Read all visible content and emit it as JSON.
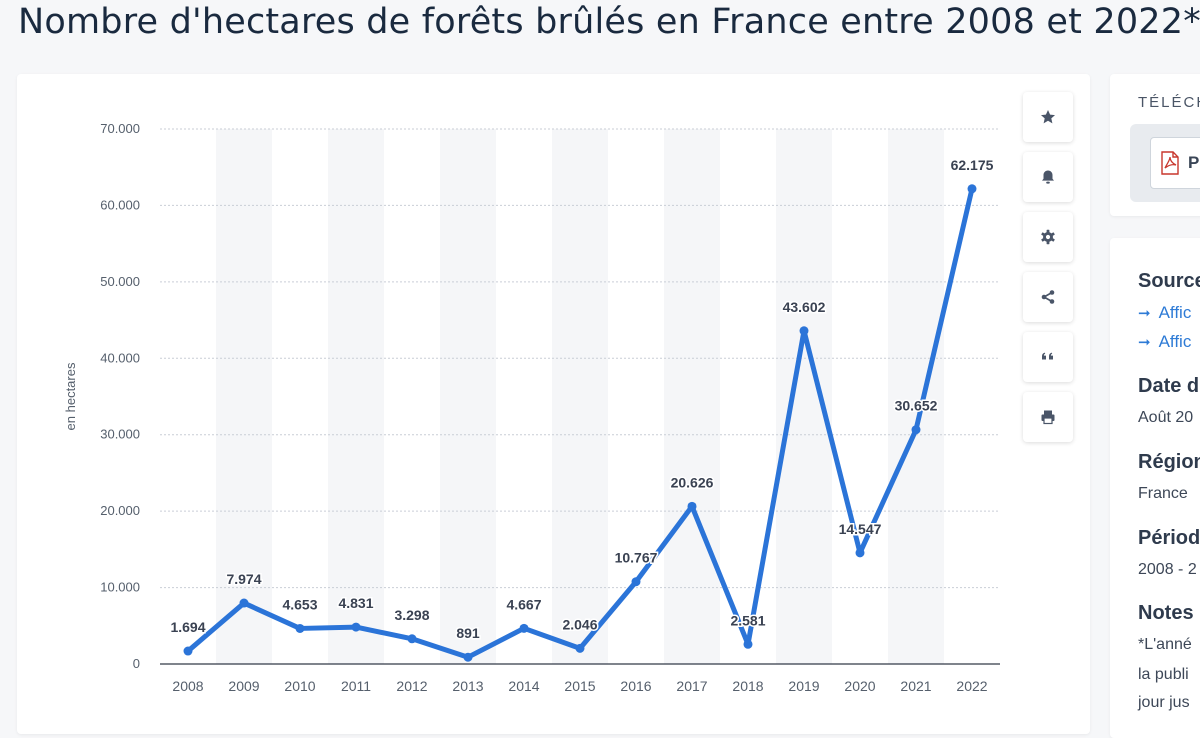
{
  "page": {
    "title": "Nombre d'hectares de forêts brûlés en France entre 2008 et 2022*"
  },
  "chart_data": {
    "type": "line",
    "title": "Nombre d'hectares de forêts brûlés en France entre 2008 et 2022*",
    "xlabel": "",
    "ylabel": "en hectares",
    "categories": [
      "2008",
      "2009",
      "2010",
      "2011",
      "2012",
      "2013",
      "2014",
      "2015",
      "2016",
      "2017",
      "2018",
      "2019",
      "2020",
      "2021",
      "2022"
    ],
    "values": [
      1694,
      7974,
      4653,
      4831,
      3298,
      891,
      4667,
      2046,
      10767,
      20626,
      2581,
      43602,
      14547,
      30652,
      62175
    ],
    "value_labels": [
      "1.694",
      "7.974",
      "4.653",
      "4.831",
      "3.298",
      "891",
      "4.667",
      "2.046",
      "10.767",
      "20.626",
      "2.581",
      "43.602",
      "14.547",
      "30.652",
      "62.175"
    ],
    "y_ticks": [
      0,
      10000,
      20000,
      30000,
      40000,
      50000,
      60000,
      70000
    ],
    "y_tick_labels": [
      "0",
      "10.000",
      "20.000",
      "30.000",
      "40.000",
      "50.000",
      "60.000",
      "70.000"
    ],
    "ylim": [
      0,
      70000
    ],
    "grid": true,
    "line_color": "#2b74d8",
    "series": [
      {
        "name": "en hectares",
        "values": [
          1694,
          7974,
          4653,
          4831,
          3298,
          891,
          4667,
          2046,
          10767,
          20626,
          2581,
          43602,
          14547,
          30652,
          62175
        ]
      }
    ]
  },
  "toolbar": {
    "buttons": [
      {
        "name": "favorite",
        "icon": "star-icon"
      },
      {
        "name": "notification",
        "icon": "bell-icon"
      },
      {
        "name": "settings",
        "icon": "gear-icon"
      },
      {
        "name": "share",
        "icon": "share-icon"
      },
      {
        "name": "cite",
        "icon": "quote-icon"
      },
      {
        "name": "print",
        "icon": "printer-icon"
      }
    ]
  },
  "download": {
    "title": "TÉLÉCH",
    "pdf_label": "P",
    "icon": "pdf-file-icon"
  },
  "info": {
    "source_heading": "Source",
    "source_links": [
      "Affic",
      "Affic"
    ],
    "date_heading": "Date d",
    "date_value": "Août 20",
    "region_heading": "Région",
    "region_value": "France",
    "period_heading": "Périod",
    "period_value": "2008 - 2",
    "notes_heading": "Notes",
    "notes_lines": [
      "*L'anné",
      "la publi",
      "jour jus"
    ]
  },
  "colors": {
    "accent": "#2b74d8",
    "title": "#1a2a3f",
    "link": "#2e7bd6"
  }
}
